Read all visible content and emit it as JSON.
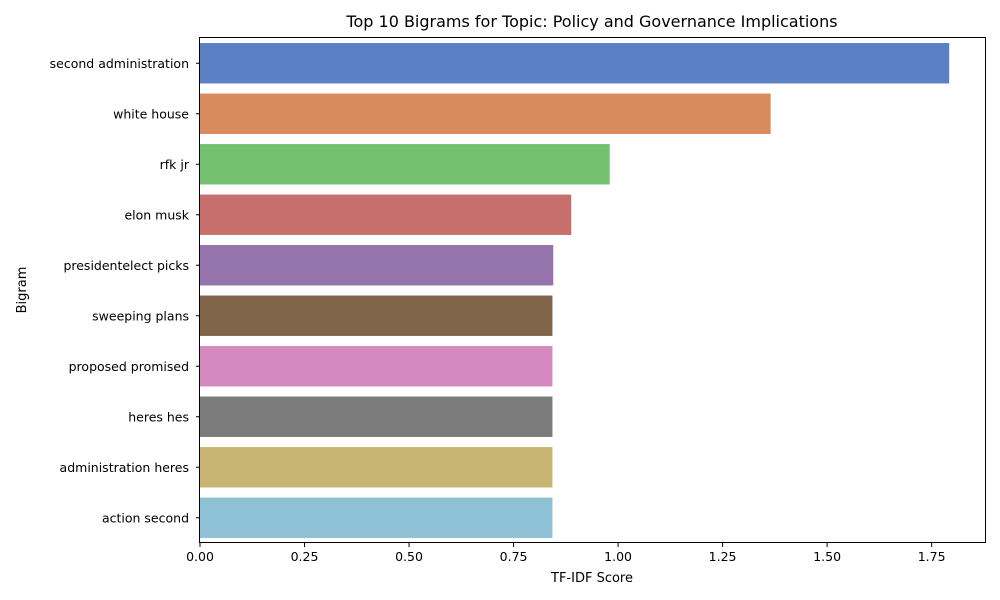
{
  "chart_data": {
    "type": "bar",
    "orientation": "horizontal",
    "title": "Top 10 Bigrams for Topic: Policy and Governance Implications",
    "xlabel": "TF-IDF Score",
    "ylabel": "Bigram",
    "xlim": [
      0,
      1.88
    ],
    "x_ticks": [
      "0.00",
      "0.25",
      "0.50",
      "0.75",
      "1.00",
      "1.25",
      "1.50",
      "1.75"
    ],
    "grid": false,
    "legend": "none",
    "categories": [
      "second administration",
      "white house",
      "rfk jr",
      "elon musk",
      "presidentelect picks",
      "sweeping plans",
      "proposed promised",
      "heres hes",
      "administration heres",
      "action second"
    ],
    "values": [
      1.792,
      1.365,
      0.98,
      0.888,
      0.845,
      0.843,
      0.843,
      0.843,
      0.843,
      0.843
    ],
    "colors": [
      "#5b80c3",
      "#d98b5e",
      "#74c172",
      "#c66f6d",
      "#9574ac",
      "#816449",
      "#d389be",
      "#7b7b7b",
      "#c8b473",
      "#8ec0d6"
    ]
  }
}
